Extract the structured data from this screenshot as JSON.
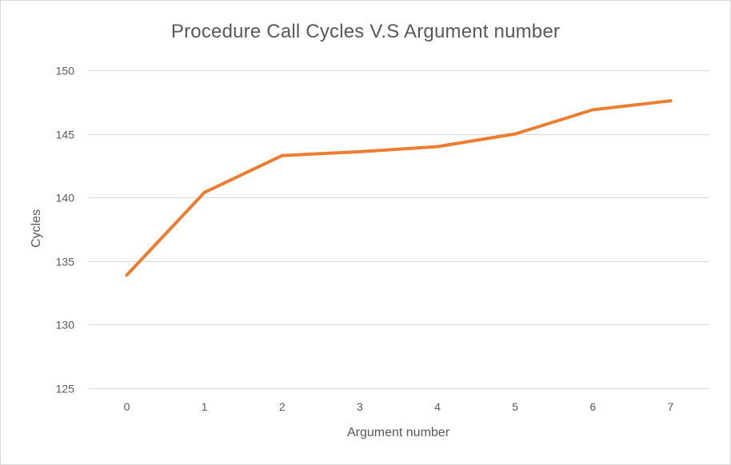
{
  "chart_data": {
    "type": "line",
    "title": "Procedure Call Cycles V.S Argument number",
    "xlabel": "Argument number",
    "ylabel": "Cycles",
    "categories": [
      "0",
      "1",
      "2",
      "3",
      "4",
      "5",
      "6",
      "7"
    ],
    "series": [
      {
        "values": [
          133.9,
          140.4,
          143.3,
          143.6,
          144.0,
          145.0,
          146.9,
          147.6
        ],
        "color": "#ed7d31"
      }
    ],
    "ylim": [
      125,
      150
    ],
    "yticks": [
      125,
      130,
      135,
      140,
      145,
      150
    ],
    "grid": true,
    "legend": "none"
  }
}
